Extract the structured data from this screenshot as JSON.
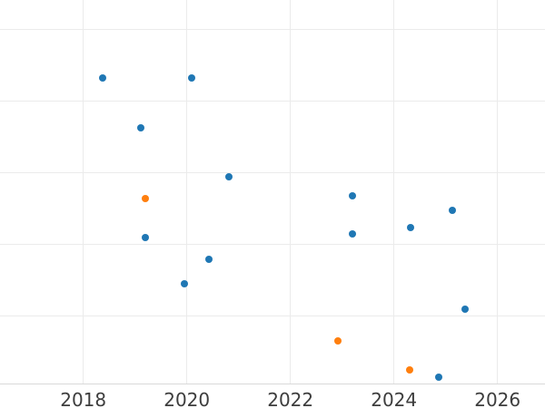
{
  "chart": {
    "title": "",
    "colors": {
      "series_blue": "#1f77b4",
      "series_orange": "#ff7f0e",
      "gridline": "#ebebeb",
      "axis_line": "#d9d9d9",
      "tick_label": "#3d3d3d",
      "background": "#ffffff"
    },
    "x_axis": {
      "tick_labels": [
        "2018",
        "2020",
        "2022",
        "2024",
        "2026"
      ]
    },
    "y_axis": {
      "tick_labels": []
    }
  },
  "chart_data": {
    "type": "scatter",
    "title": "",
    "xlabel": "",
    "ylabel": "",
    "legend": false,
    "grid": true,
    "xlim": [
      2016.4,
      2026.9
    ],
    "ylim": [
      0.06,
      5.41
    ],
    "x_ticks": [
      2018,
      2020,
      2022,
      2024,
      2026
    ],
    "y_gridlines": [
      1,
      2,
      3,
      4,
      5
    ],
    "series": [
      {
        "name": "series-blue",
        "color": "#1f77b4",
        "points": [
          {
            "x": 2018.38,
            "y": 4.32
          },
          {
            "x": 2020.1,
            "y": 4.33
          },
          {
            "x": 2019.11,
            "y": 3.63
          },
          {
            "x": 2020.81,
            "y": 2.94
          },
          {
            "x": 2023.19,
            "y": 2.68
          },
          {
            "x": 2019.19,
            "y": 2.1
          },
          {
            "x": 2020.43,
            "y": 1.79
          },
          {
            "x": 2019.95,
            "y": 1.45
          },
          {
            "x": 2023.2,
            "y": 2.15
          },
          {
            "x": 2024.32,
            "y": 2.24
          },
          {
            "x": 2025.13,
            "y": 2.48
          },
          {
            "x": 2025.37,
            "y": 1.1
          },
          {
            "x": 2024.87,
            "y": 0.15
          }
        ]
      },
      {
        "name": "series-orange",
        "color": "#ff7f0e",
        "points": [
          {
            "x": 2019.19,
            "y": 2.64
          },
          {
            "x": 2022.92,
            "y": 0.65
          },
          {
            "x": 2024.3,
            "y": 0.25
          }
        ]
      }
    ]
  }
}
